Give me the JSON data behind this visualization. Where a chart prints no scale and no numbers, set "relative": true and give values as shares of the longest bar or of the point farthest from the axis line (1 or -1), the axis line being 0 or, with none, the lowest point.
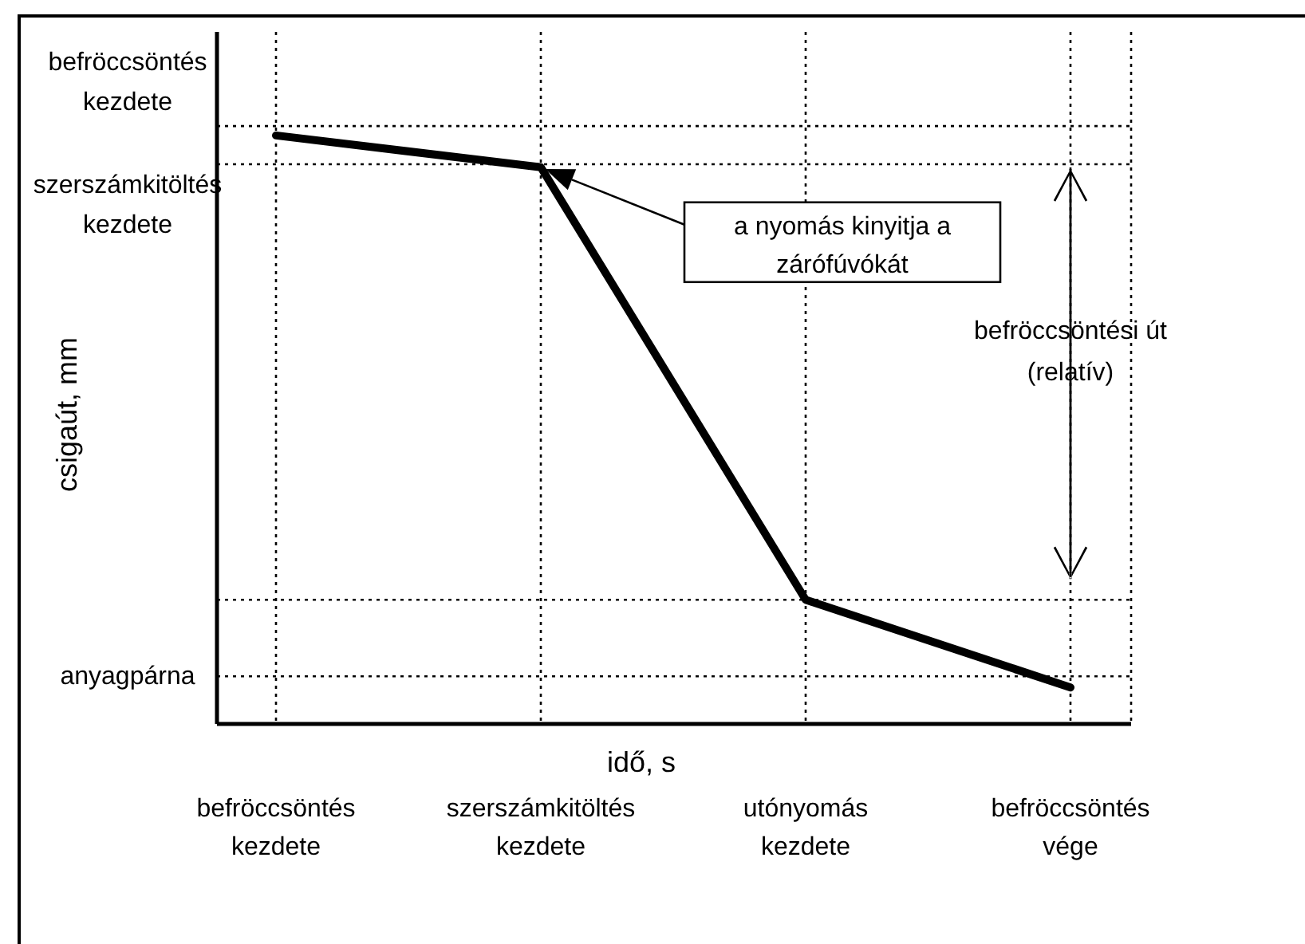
{
  "chart_data": {
    "type": "line",
    "relative": true,
    "xlabel": "idő, s",
    "ylabel": "csigaút, mm",
    "categories": [
      "befröccsöntés kezdete",
      "szerszámkitöltés kezdete",
      "utónyomás kezdete",
      "befröccsöntés vége"
    ],
    "series": [
      {
        "color": "#000000",
        "values": [
          1,
          0.946,
          0.211,
          0.062
        ]
      }
    ],
    "tick_labels": "x",
    "grid": "x",
    "marker": "none",
    "line_style": "solid",
    "ref_lines": [
      {
        "axis": "y",
        "value": 1.016,
        "label": "befröccsöntés kezdete",
        "line_style": "dotted"
      },
      {
        "axis": "y",
        "value": 0.951,
        "label": "szerszámkitöltés kezdete",
        "line_style": "dotted"
      },
      {
        "axis": "y",
        "value": 0.211,
        "label": null,
        "line_style": "dotted"
      },
      {
        "axis": "y",
        "value": 0.081,
        "label": "anyagpárna",
        "line_style": "dotted"
      }
    ],
    "annotations": [
      "a nyomás kinyitja a zárófúvókát",
      "befröccsöntési út (relatív)"
    ]
  }
}
